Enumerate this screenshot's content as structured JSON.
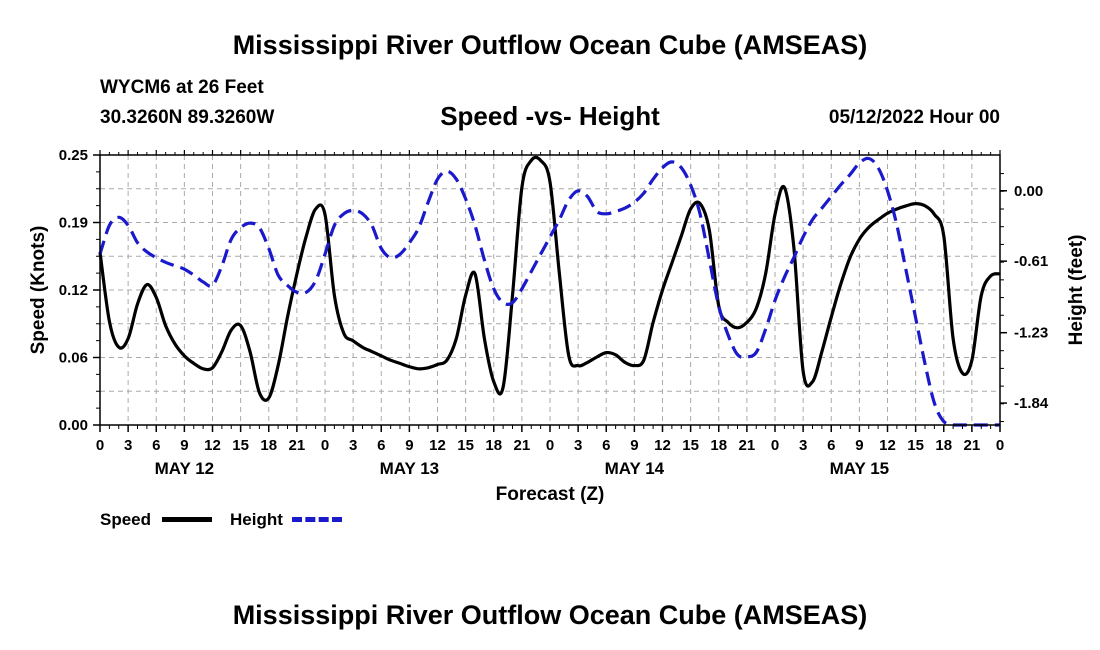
{
  "page": {
    "title": "Mississippi River Outflow Ocean Cube (AMSEAS)",
    "footer_title": "Mississippi River Outflow Ocean Cube (AMSEAS)"
  },
  "header": {
    "station": "WYCM6 at 26 Feet",
    "coords": "30.3260N  89.3260W",
    "subtitle": "Speed -vs- Height",
    "datetime": "05/12/2022 Hour 00"
  },
  "legend": {
    "speed_label": "Speed",
    "height_label": "Height"
  },
  "colors": {
    "speed": "#000000",
    "height": "#1a1acc",
    "grid": "#aaaaaa"
  },
  "chart_data": {
    "type": "line",
    "xlabel": "Forecast (Z)",
    "ylabel_left": "Speed (Knots)",
    "ylabel_right": "Height (feet)",
    "x_hours_range": [
      0,
      96
    ],
    "x_tick_labels": [
      "0",
      "3",
      "6",
      "9",
      "12",
      "15",
      "18",
      "21",
      "0",
      "3",
      "6",
      "9",
      "12",
      "15",
      "18",
      "21",
      "0",
      "3",
      "6",
      "9",
      "12",
      "15",
      "18",
      "21",
      "0",
      "3",
      "6",
      "9",
      "12",
      "15",
      "18",
      "21",
      "0"
    ],
    "day_labels": [
      {
        "label": "MAY 12",
        "hour": 9
      },
      {
        "label": "MAY 13",
        "hour": 33
      },
      {
        "label": "MAY 14",
        "hour": 57
      },
      {
        "label": "MAY 15",
        "hour": 81
      }
    ],
    "ylim_left": [
      0,
      0.25
    ],
    "y_ticks_left": [
      "0.00",
      "0.06",
      "0.12",
      "0.19",
      "0.25"
    ],
    "y_tick_values_left": [
      0,
      0.0625,
      0.125,
      0.1875,
      0.25
    ],
    "ylim_right": [
      -2.03,
      0.31
    ],
    "y_ticks_right": [
      "0.00",
      "-0.61",
      "-1.23",
      "-1.84"
    ],
    "y_tick_values_right": [
      0,
      -0.61,
      -1.23,
      -1.84
    ],
    "grid": true,
    "series": [
      {
        "name": "Speed",
        "axis": "left",
        "style": "solid",
        "x": [
          0,
          1,
          2,
          3,
          4,
          5,
          6,
          7,
          8,
          9,
          10,
          11,
          12,
          13,
          14,
          15,
          16,
          17,
          18,
          19,
          20,
          21,
          22,
          23,
          24,
          25,
          26,
          27,
          28,
          29,
          30,
          31,
          32,
          33,
          34,
          35,
          36,
          37,
          38,
          39,
          40,
          41,
          42,
          43,
          44,
          45,
          46,
          47,
          48,
          49,
          50,
          51,
          52,
          53,
          54,
          55,
          56,
          57,
          58,
          59,
          60,
          61,
          62,
          63,
          64,
          65,
          66,
          67,
          68,
          69,
          70,
          71,
          72,
          73,
          74,
          75,
          76,
          77,
          78,
          79,
          80,
          81,
          82,
          83,
          84,
          85,
          86,
          87,
          88,
          89,
          90,
          91,
          92,
          93,
          94,
          95,
          96
        ],
        "values": [
          0.16,
          0.096,
          0.072,
          0.08,
          0.112,
          0.13,
          0.118,
          0.092,
          0.075,
          0.064,
          0.057,
          0.052,
          0.053,
          0.068,
          0.088,
          0.092,
          0.068,
          0.03,
          0.025,
          0.055,
          0.1,
          0.14,
          0.175,
          0.2,
          0.195,
          0.12,
          0.085,
          0.078,
          0.072,
          0.068,
          0.064,
          0.06,
          0.057,
          0.054,
          0.052,
          0.053,
          0.056,
          0.06,
          0.08,
          0.12,
          0.14,
          0.08,
          0.04,
          0.035,
          0.12,
          0.22,
          0.245,
          0.245,
          0.225,
          0.14,
          0.064,
          0.055,
          0.058,
          0.063,
          0.067,
          0.065,
          0.058,
          0.055,
          0.06,
          0.095,
          0.125,
          0.15,
          0.175,
          0.2,
          0.205,
          0.18,
          0.11,
          0.095,
          0.09,
          0.095,
          0.108,
          0.14,
          0.195,
          0.22,
          0.165,
          0.05,
          0.04,
          0.068,
          0.1,
          0.13,
          0.155,
          0.172,
          0.183,
          0.19,
          0.196,
          0.2,
          0.203,
          0.205,
          0.203,
          0.195,
          0.175,
          0.08,
          0.048,
          0.06,
          0.12,
          0.138,
          0.14
        ]
      },
      {
        "name": "Height",
        "axis": "right",
        "style": "dashed",
        "x": [
          0,
          1,
          2,
          3,
          4,
          5,
          6,
          7,
          8,
          9,
          10,
          11,
          12,
          13,
          14,
          15,
          16,
          17,
          18,
          19,
          20,
          21,
          22,
          23,
          24,
          25,
          26,
          27,
          28,
          29,
          30,
          31,
          32,
          33,
          34,
          35,
          36,
          37,
          38,
          39,
          40,
          41,
          42,
          43,
          44,
          45,
          46,
          47,
          48,
          49,
          50,
          51,
          52,
          53,
          54,
          55,
          56,
          57,
          58,
          59,
          60,
          61,
          62,
          63,
          64,
          65,
          66,
          67,
          68,
          69,
          70,
          71,
          72,
          73,
          74,
          75,
          76,
          77,
          78,
          79,
          80,
          81,
          82,
          83,
          84,
          85,
          86,
          87,
          88,
          89,
          90,
          91,
          92,
          93,
          94,
          95,
          96
        ],
        "values": [
          -0.55,
          -0.3,
          -0.23,
          -0.3,
          -0.45,
          -0.53,
          -0.58,
          -0.62,
          -0.65,
          -0.68,
          -0.73,
          -0.79,
          -0.82,
          -0.65,
          -0.42,
          -0.32,
          -0.28,
          -0.32,
          -0.5,
          -0.73,
          -0.82,
          -0.88,
          -0.88,
          -0.78,
          -0.55,
          -0.3,
          -0.2,
          -0.17,
          -0.2,
          -0.3,
          -0.5,
          -0.58,
          -0.55,
          -0.45,
          -0.32,
          -0.1,
          0.1,
          0.17,
          0.1,
          -0.07,
          -0.3,
          -0.6,
          -0.85,
          -0.97,
          -0.97,
          -0.85,
          -0.7,
          -0.55,
          -0.4,
          -0.25,
          -0.08,
          0.0,
          -0.05,
          -0.18,
          -0.2,
          -0.18,
          -0.15,
          -0.1,
          -0.02,
          0.1,
          0.2,
          0.25,
          0.2,
          0.05,
          -0.2,
          -0.6,
          -1.0,
          -1.25,
          -1.42,
          -1.44,
          -1.4,
          -1.2,
          -0.95,
          -0.75,
          -0.58,
          -0.4,
          -0.25,
          -0.15,
          -0.05,
          0.05,
          0.14,
          0.24,
          0.28,
          0.2,
          0.0,
          -0.3,
          -0.7,
          -1.1,
          -1.5,
          -1.84,
          -2.0,
          -2.05,
          -2.07,
          -2.08,
          -2.09,
          -2.1,
          -2.1
        ]
      }
    ]
  }
}
